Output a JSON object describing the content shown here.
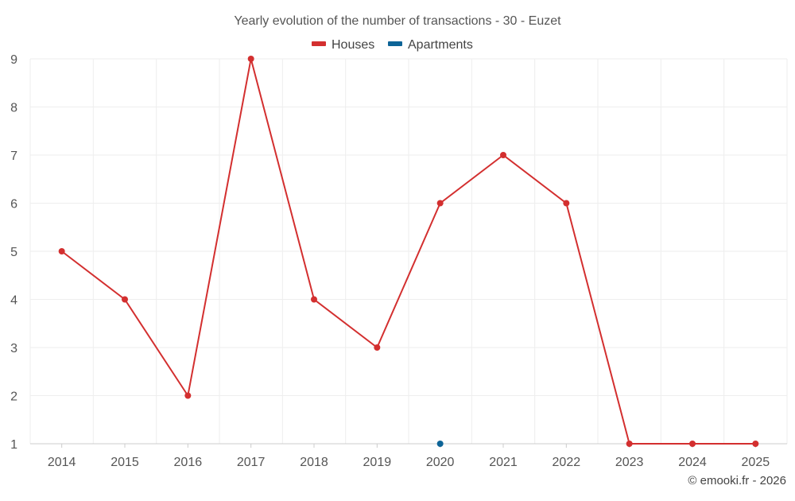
{
  "chart_data": {
    "type": "line",
    "title": "Yearly evolution of the number of transactions - 30 - Euzet",
    "xlabel": "",
    "ylabel": "",
    "categories": [
      "2014",
      "2015",
      "2016",
      "2017",
      "2018",
      "2019",
      "2020",
      "2021",
      "2022",
      "2023",
      "2024",
      "2025"
    ],
    "yticks": [
      "1",
      "2",
      "3",
      "4",
      "5",
      "6",
      "7",
      "8",
      "9"
    ],
    "ylim": [
      1,
      9
    ],
    "grid": true,
    "legend_position": "top-center",
    "series": [
      {
        "name": "Houses",
        "color": "#d32f2f",
        "values": [
          5,
          4,
          2,
          9,
          4,
          3,
          6,
          7,
          6,
          1,
          1,
          1
        ]
      },
      {
        "name": "Apartments",
        "color": "#0d6497",
        "values": [
          null,
          null,
          null,
          null,
          null,
          null,
          1,
          null,
          null,
          null,
          null,
          null
        ]
      }
    ],
    "credit": "© emooki.fr - 2026"
  }
}
